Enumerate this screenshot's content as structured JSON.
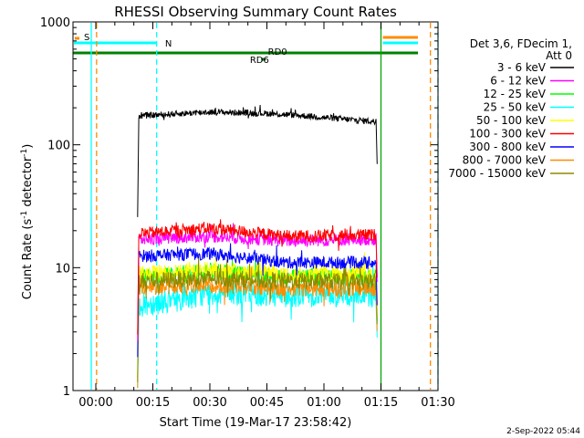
{
  "chart_data": {
    "type": "line",
    "title": "RHESSI Observing Summary Count Rates",
    "xlabel": "Start Time (19-Mar-17 23:58:42)",
    "ylabel_main": "Count Rate (s",
    "ylabel_sup1": "-1",
    "ylabel_mid": " detector",
    "ylabel_sup2": "-1",
    "ylabel_end": ")",
    "yscale": "log",
    "ylim": [
      1,
      1000
    ],
    "xlim_min": [
      -6,
      90
    ],
    "x_unit": "minutes after 00:00",
    "x_ticks": [
      {
        "label": "00:00",
        "min": 0
      },
      {
        "label": "00:15",
        "min": 15
      },
      {
        "label": "00:30",
        "min": 30
      },
      {
        "label": "00:45",
        "min": 45
      },
      {
        "label": "01:00",
        "min": 60
      },
      {
        "label": "01:15",
        "min": 75
      },
      {
        "label": "01:30",
        "min": 90
      }
    ],
    "y_ticks": [
      {
        "label": "1",
        "v": 1
      },
      {
        "label": "10",
        "v": 10
      },
      {
        "label": "100",
        "v": 100
      },
      {
        "label": "1000",
        "v": 1000
      }
    ],
    "legend": {
      "header1": "Det 3,6, FDecim 1,",
      "header2": "Att 0",
      "placement": "right"
    },
    "data_start_min": 11,
    "data_end_min": 74,
    "series": [
      {
        "name": "3 - 6 keV",
        "color": "#000000",
        "levels_min": [
          12,
          20,
          30,
          45,
          55,
          65,
          73
        ],
        "levels_val": [
          172,
          178,
          185,
          180,
          172,
          162,
          155
        ],
        "noise": 0.025
      },
      {
        "name": "6 - 12 keV",
        "color": "#ff00ff",
        "levels_min": [
          12,
          30,
          50,
          73
        ],
        "levels_val": [
          17,
          18,
          16.5,
          17
        ],
        "noise": 0.05
      },
      {
        "name": "12 - 25 keV",
        "color": "#00ff00",
        "levels_min": [
          12,
          30,
          50,
          73
        ],
        "levels_val": [
          8.5,
          9.2,
          8.5,
          8.2
        ],
        "noise": 0.07
      },
      {
        "name": "25 - 50 keV",
        "color": "#00ffff",
        "levels_min": [
          12,
          20,
          30,
          50,
          73
        ],
        "levels_val": [
          5.0,
          5.4,
          6.2,
          6.0,
          6.0
        ],
        "noise": 0.1
      },
      {
        "name": "50 - 100 keV",
        "color": "#ffff00",
        "levels_min": [
          12,
          30,
          50,
          73
        ],
        "levels_val": [
          8.8,
          9.5,
          8.8,
          8.7
        ],
        "noise": 0.07
      },
      {
        "name": "100 - 300 keV",
        "color": "#ff0000",
        "levels_min": [
          12,
          30,
          50,
          73
        ],
        "levels_val": [
          19,
          21,
          18,
          18.5
        ],
        "noise": 0.05
      },
      {
        "name": "300 - 800 keV",
        "color": "#0000ff",
        "levels_min": [
          12,
          30,
          50,
          73
        ],
        "levels_val": [
          12.5,
          13,
          11,
          11
        ],
        "noise": 0.05
      },
      {
        "name": "800 - 7000 keV",
        "color": "#ff8c00",
        "levels_min": [
          12,
          30,
          50,
          73
        ],
        "levels_val": [
          7.0,
          7.3,
          6.8,
          6.8
        ],
        "noise": 0.07
      },
      {
        "name": "7000 - 15000 keV",
        "color": "#8b8b00",
        "levels_min": [
          12,
          30,
          50,
          73
        ],
        "levels_val": [
          7.8,
          8.2,
          7.8,
          7.7
        ],
        "noise": 0.07
      }
    ],
    "flag_labels": {
      "s": "S",
      "n": "N",
      "rd0": "RD0",
      "rd6": "RD6"
    },
    "vlines": [
      {
        "min": -1.2,
        "color": "#00ffff",
        "style": "solid"
      },
      {
        "min": 0.2,
        "color": "#ff8c00",
        "style": "dashed"
      },
      {
        "min": 16,
        "color": "#00ffff",
        "style": "dashed"
      },
      {
        "min": 75,
        "color": "#00aa00",
        "style": "solid"
      },
      {
        "min": 88,
        "color": "#ff8c00",
        "style": "dashed"
      },
      {
        "min": 90,
        "color": "#00ffff",
        "style": "dashed"
      }
    ]
  },
  "footer": {
    "date": "2-Sep-2022 05:44"
  }
}
